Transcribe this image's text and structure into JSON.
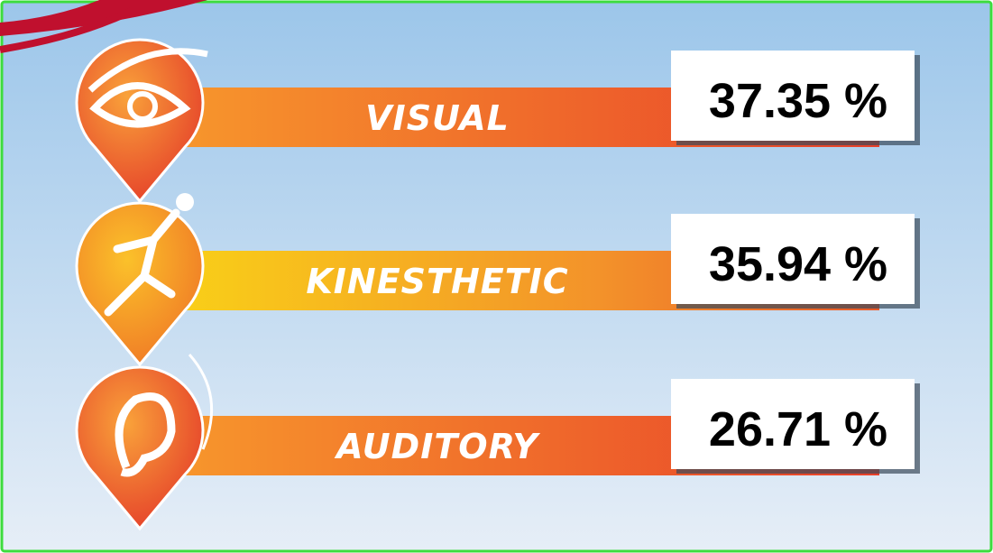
{
  "items": [
    {
      "label": "VISUAL",
      "value": "37.35 %"
    },
    {
      "label": "KINESTHETIC",
      "value": "35.94 %"
    },
    {
      "label": "AUDITORY",
      "value": "26.71 %"
    }
  ]
}
